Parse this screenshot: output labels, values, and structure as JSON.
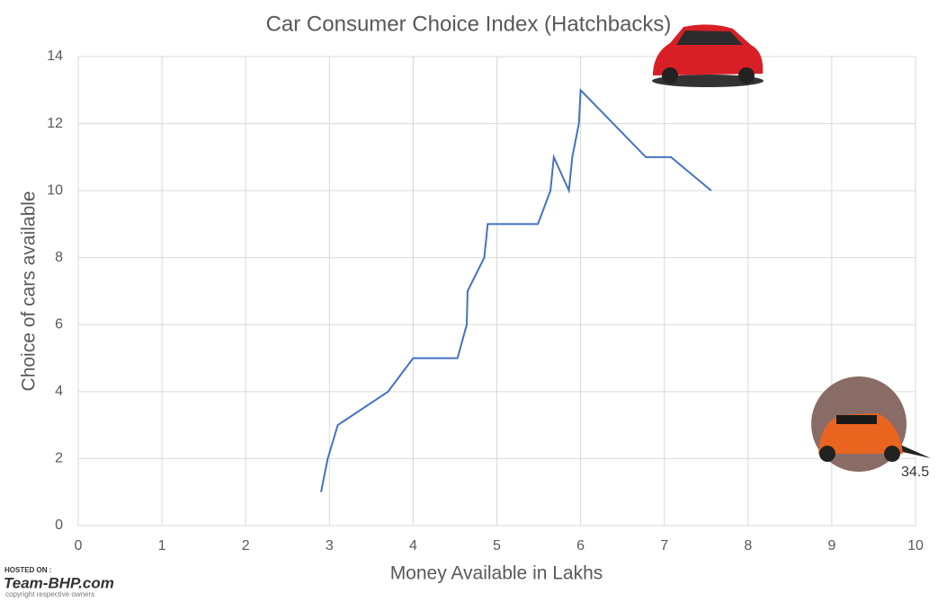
{
  "chart_data": {
    "type": "line",
    "title": "Car Consumer Choice Index (Hatchbacks)",
    "x_label": "Money Available in Lakhs",
    "y_label": "Choice of cars available",
    "x": [
      2.9,
      2.98,
      3.1,
      3.7,
      4.0,
      4.53,
      4.64,
      4.65,
      4.85,
      4.89,
      5.49,
      5.64,
      5.68,
      5.86,
      5.9,
      5.98,
      6.0,
      6.78,
      7.08,
      7.56
    ],
    "values": [
      1,
      2,
      3,
      4,
      5,
      5,
      6,
      7,
      8,
      9,
      9,
      10,
      11,
      10,
      11,
      12,
      13,
      11,
      11,
      10
    ],
    "color": "#4472c4",
    "xlim": [
      0,
      10
    ],
    "xticks": [
      0,
      1,
      2,
      3,
      4,
      5,
      6,
      7,
      8,
      9,
      10
    ],
    "ylim": [
      0,
      14
    ],
    "yticks": [
      0,
      2,
      4,
      6,
      8,
      10,
      12,
      14
    ],
    "grid": true,
    "annotations": [
      {
        "text": "34.5"
      }
    ]
  },
  "watermark": {
    "hosted_on": "HOSTED ON :",
    "site": "Team-BHP.com",
    "copyright": "copyright respective owners"
  }
}
